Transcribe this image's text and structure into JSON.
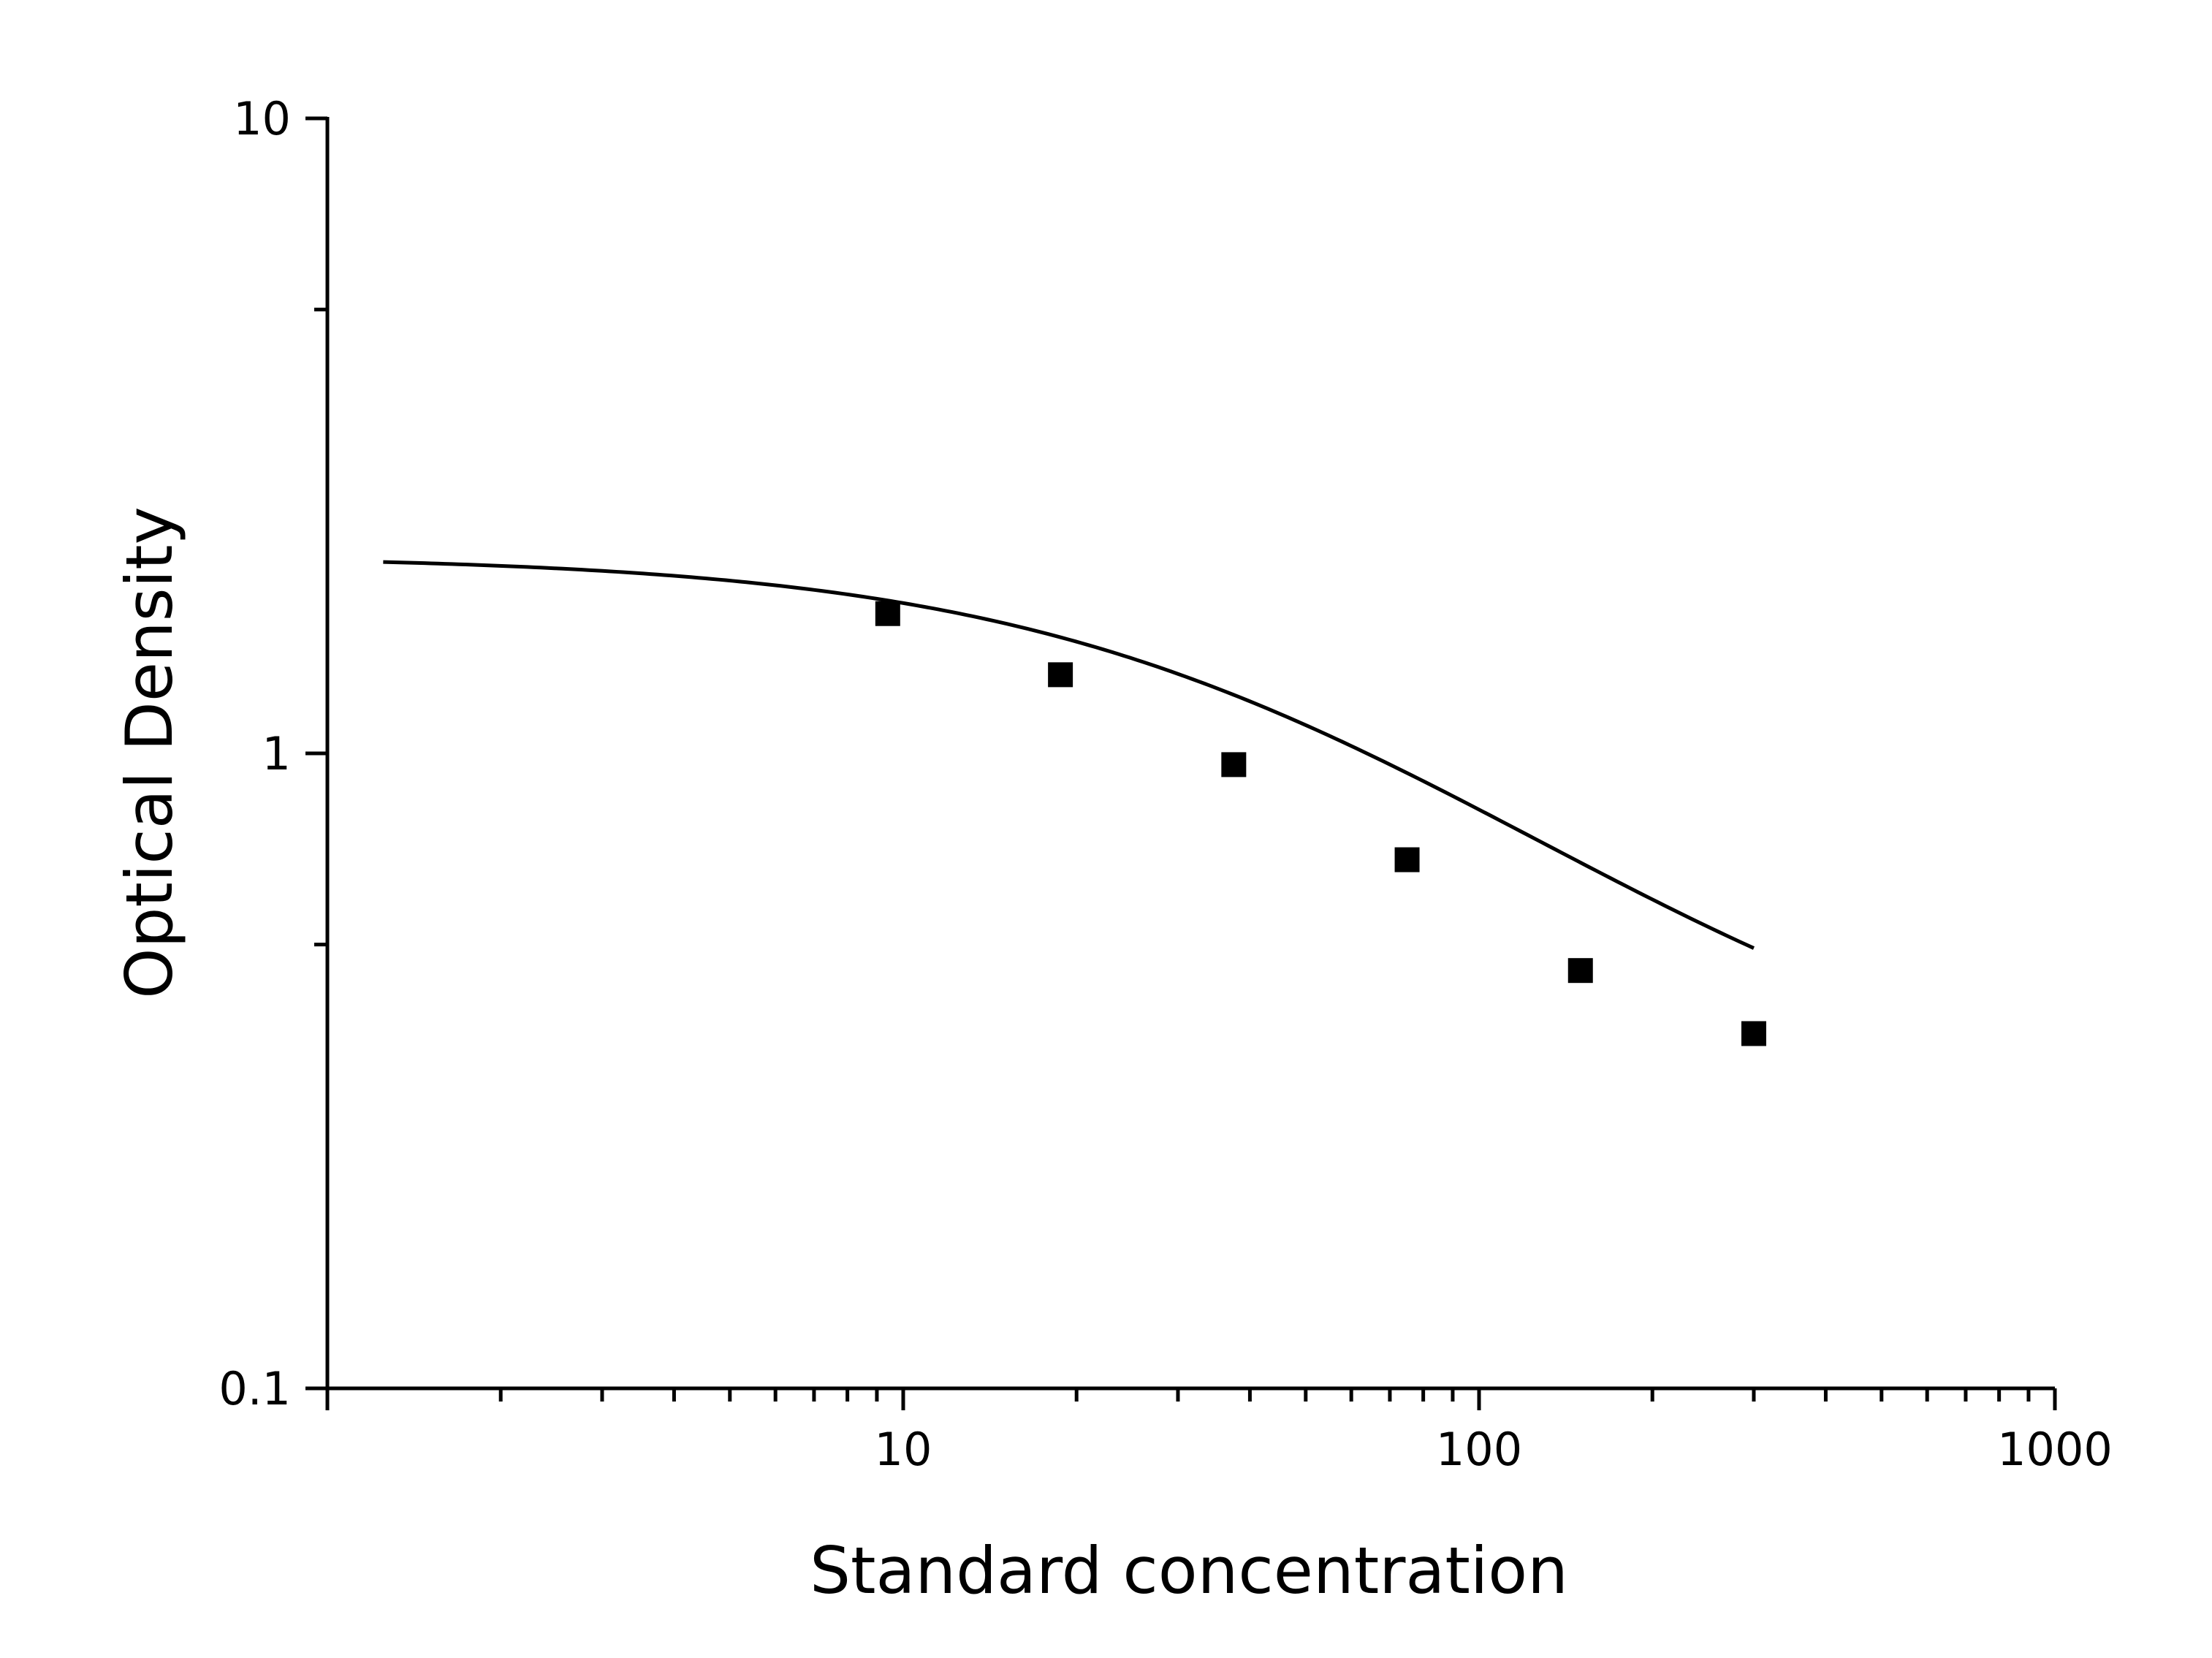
{
  "chart_data": {
    "type": "scatter",
    "xlabel": "Standard concentration",
    "ylabel": "Optical Density",
    "x_scale": "log",
    "y_scale": "log",
    "xlim": [
      1,
      1000
    ],
    "ylim": [
      0.1,
      10
    ],
    "x_ticks": [
      {
        "value": 10,
        "label": "10"
      },
      {
        "value": 100,
        "label": "100"
      },
      {
        "value": 1000,
        "label": "1000"
      }
    ],
    "y_ticks": [
      {
        "value": 0.1,
        "label": "0.1"
      },
      {
        "value": 1,
        "label": "1"
      },
      {
        "value": 10,
        "label": "10"
      }
    ],
    "grid": false,
    "legend": "none",
    "series": [
      {
        "marker": "square",
        "x": [
          9.4,
          18.75,
          37.5,
          75,
          150,
          300
        ],
        "y": [
          1.66,
          1.33,
          0.96,
          0.68,
          0.455,
          0.362
        ]
      }
    ],
    "fit_curve": {
      "type": "4PL",
      "A": 2.05,
      "B": 1.0,
      "C": 45,
      "D": 0.26,
      "x_range": [
        1.25,
        300
      ]
    },
    "colors": {
      "line": "#000000",
      "marker": "#000000",
      "background": "#ffffff"
    }
  }
}
